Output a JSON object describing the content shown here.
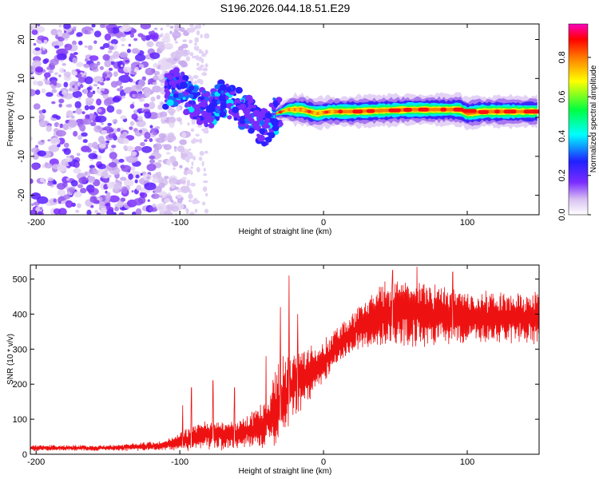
{
  "title": "S196.2026.044.18.51.E29",
  "chart_data": [
    {
      "type": "heatmap",
      "name": "spectrogram",
      "xlabel": "Height of straight line (km)",
      "ylabel": "Frequency (Hz)",
      "xlim": [
        -204,
        150
      ],
      "ylim": [
        -25,
        24
      ],
      "xticks": [
        -200,
        -100,
        0,
        100
      ],
      "yticks": [
        -20,
        -10,
        0,
        10,
        20
      ],
      "colorbar": {
        "label": "Normalized spectral amplitude",
        "range": [
          0,
          0.97
        ],
        "ticks": [
          0.0,
          0.2,
          0.4,
          0.6,
          0.8
        ],
        "colors": [
          "#ffffff",
          "#d9c2f2",
          "#7b2cff",
          "#2020ff",
          "#00ffff",
          "#00ff40",
          "#ffff00",
          "#ff8000",
          "#ff0000",
          "#ff00c0"
        ]
      },
      "noise_region_km": [
        -204,
        -95
      ],
      "scatter_region_km": [
        -110,
        -30
      ],
      "carrier_track": [
        {
          "x": -110,
          "f": 7
        },
        {
          "x": -100,
          "f": 8
        },
        {
          "x": -92,
          "f": 4
        },
        {
          "x": -85,
          "f": 3
        },
        {
          "x": -78,
          "f": 2
        },
        {
          "x": -70,
          "f": 5
        },
        {
          "x": -60,
          "f": 3
        },
        {
          "x": -50,
          "f": 0
        },
        {
          "x": -40,
          "f": -3
        },
        {
          "x": -33,
          "f": 1
        },
        {
          "x": -25,
          "f": 2
        },
        {
          "x": -15,
          "f": 2
        },
        {
          "x": -5,
          "f": 1
        },
        {
          "x": 5,
          "f": 1.5
        },
        {
          "x": 20,
          "f": 1.5
        },
        {
          "x": 60,
          "f": 2
        },
        {
          "x": 80,
          "f": 2
        },
        {
          "x": 95,
          "f": 2
        },
        {
          "x": 100,
          "f": 1
        },
        {
          "x": 110,
          "f": 1.5
        },
        {
          "x": 150,
          "f": 1.5
        }
      ]
    },
    {
      "type": "line",
      "name": "snr",
      "xlabel": "Height of straight line (km)",
      "ylabel": "SNR (10 * v/v)",
      "xlim": [
        -204,
        150
      ],
      "ylim": [
        0,
        540
      ],
      "xticks": [
        -200,
        -100,
        0,
        100
      ],
      "yticks": [
        0,
        100,
        200,
        300,
        400,
        500
      ],
      "color": "#ee1111",
      "envelope": [
        {
          "x": -204,
          "mid": 18,
          "amp": 8
        },
        {
          "x": -150,
          "mid": 18,
          "amp": 8
        },
        {
          "x": -110,
          "mid": 25,
          "amp": 14
        },
        {
          "x": -95,
          "mid": 40,
          "amp": 30
        },
        {
          "x": -85,
          "mid": 60,
          "amp": 40
        },
        {
          "x": -70,
          "mid": 55,
          "amp": 40
        },
        {
          "x": -55,
          "mid": 60,
          "amp": 40
        },
        {
          "x": -40,
          "mid": 90,
          "amp": 70
        },
        {
          "x": -30,
          "mid": 150,
          "amp": 110
        },
        {
          "x": -20,
          "mid": 200,
          "amp": 90
        },
        {
          "x": -10,
          "mid": 230,
          "amp": 70
        },
        {
          "x": 0,
          "mid": 260,
          "amp": 60
        },
        {
          "x": 10,
          "mid": 310,
          "amp": 50
        },
        {
          "x": 20,
          "mid": 350,
          "amp": 50
        },
        {
          "x": 40,
          "mid": 400,
          "amp": 90
        },
        {
          "x": 60,
          "mid": 405,
          "amp": 90
        },
        {
          "x": 100,
          "mid": 390,
          "amp": 70
        },
        {
          "x": 150,
          "mid": 390,
          "amp": 70
        }
      ],
      "spikes": [
        {
          "x": -98,
          "y": 140
        },
        {
          "x": -92,
          "y": 190
        },
        {
          "x": -77,
          "y": 210
        },
        {
          "x": -62,
          "y": 190
        },
        {
          "x": -40,
          "y": 280
        },
        {
          "x": -30,
          "y": 420
        },
        {
          "x": -24,
          "y": 510
        },
        {
          "x": -18,
          "y": 400
        },
        {
          "x": 48,
          "y": 525
        },
        {
          "x": 65,
          "y": 535
        },
        {
          "x": 90,
          "y": 520
        }
      ]
    }
  ]
}
